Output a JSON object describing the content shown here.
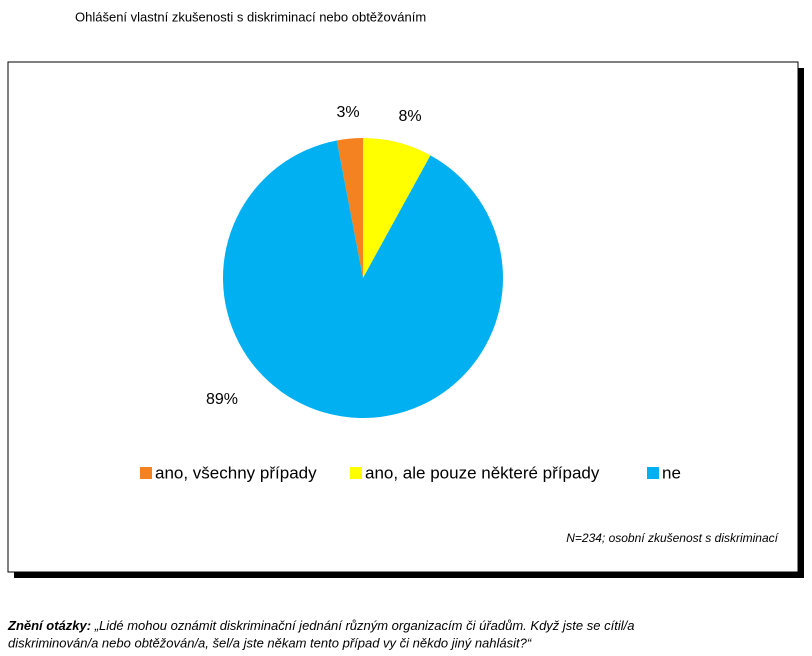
{
  "chart_data": {
    "type": "pie",
    "title": "Ohlášení vlastní zkušenosti s diskriminací nebo obtěžováním",
    "categories": [
      "ano, všechny případy",
      "ano, ale pouze některé případy",
      "ne"
    ],
    "values": [
      3,
      8,
      89
    ],
    "value_labels": [
      "3%",
      "8%",
      "89%"
    ],
    "colors": [
      "#f58220",
      "#ffff00",
      "#00b0f0"
    ],
    "note": "N=234; osobní zkušenost s diskriminací"
  },
  "footer": {
    "label": "Znění otázky:",
    "lines": [
      "„Lidé mohou oznámit diskriminační jednání různým organizacím či úřadům. Když jste se cítil/a",
      "diskriminován/a nebo obtěžován/a, šel/a jste někam tento případ vy či někdo jiný nahlásit?“"
    ]
  }
}
